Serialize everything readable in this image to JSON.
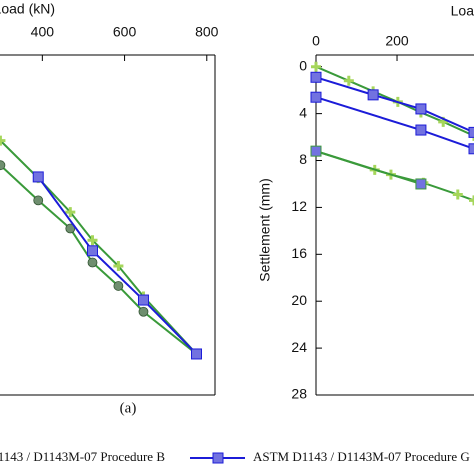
{
  "chart_data": [
    {
      "type": "line",
      "xlabel": "Load (kN)",
      "annotation": "(a)",
      "xlim": [
        297,
        820
      ],
      "xticks": [
        400,
        600,
        800
      ],
      "ylim": [
        -1,
        28
      ],
      "series": [
        {
          "name": "1143 / D1143M-07 Procedure B",
          "color": "#3a9a3a",
          "marker": "plus",
          "marker_color": "#a5d65a",
          "x": [
            298,
            390,
            468,
            522,
            585,
            646,
            775
          ],
          "values": [
            6.3,
            9.5,
            12.4,
            14.8,
            17.0,
            19.6,
            24.5
          ]
        },
        {
          "color": "#3a9a3a",
          "marker": "circle",
          "marker_color": "#6f8f6f",
          "x": [
            298,
            390,
            468,
            522,
            585,
            646,
            775
          ],
          "values": [
            8.4,
            11.4,
            13.8,
            16.7,
            18.7,
            20.9,
            24.5
          ]
        },
        {
          "name": "ASTM D1143 / D1143M-07 Procedure G",
          "color": "#1c1cd8",
          "marker": "square",
          "marker_color": "#7272e0",
          "x": [
            390,
            522,
            646,
            775
          ],
          "values": [
            9.4,
            15.7,
            19.9,
            24.5
          ]
        }
      ]
    },
    {
      "type": "line",
      "xlabel": "Loa",
      "ylabel": "Settlement (mm)",
      "xlim": [
        0,
        390
      ],
      "xticks": [
        0,
        200
      ],
      "ylim": [
        -1,
        28
      ],
      "yticks": [
        0,
        4,
        8,
        12,
        16,
        20,
        24,
        28
      ],
      "series": [
        {
          "color": "#3a9a3a",
          "marker": "plus",
          "marker_color": "#a5d65a",
          "x": [
            0,
            81,
            141,
            202,
            259,
            314,
            390
          ],
          "values": [
            0,
            1.2,
            2.1,
            3.0,
            3.9,
            4.7,
            5.9
          ]
        },
        {
          "color": "#1c1cd8",
          "marker": "square",
          "marker_color": "#7272e0",
          "x": [
            0,
            141,
            259,
            390
          ],
          "values": [
            0.9,
            2.4,
            3.6,
            5.6
          ]
        },
        {
          "color": "#1c1cd8",
          "marker": "square",
          "marker_color": "#7272e0",
          "x": [
            0,
            259,
            390
          ],
          "values": [
            2.6,
            5.4,
            7.0
          ]
        },
        {
          "color": "#3a9a3a",
          "marker": "plus",
          "marker_color": "#a5d65a",
          "x": [
            0,
            145,
            185,
            265,
            350,
            390
          ],
          "values": [
            7.2,
            8.8,
            9.2,
            9.9,
            10.9,
            11.4
          ]
        },
        {
          "color": "#3a9a3a",
          "marker": "square",
          "marker_color": "#7272e0",
          "x": [
            0,
            259
          ],
          "values": [
            7.2,
            10.0
          ]
        }
      ]
    }
  ]
}
